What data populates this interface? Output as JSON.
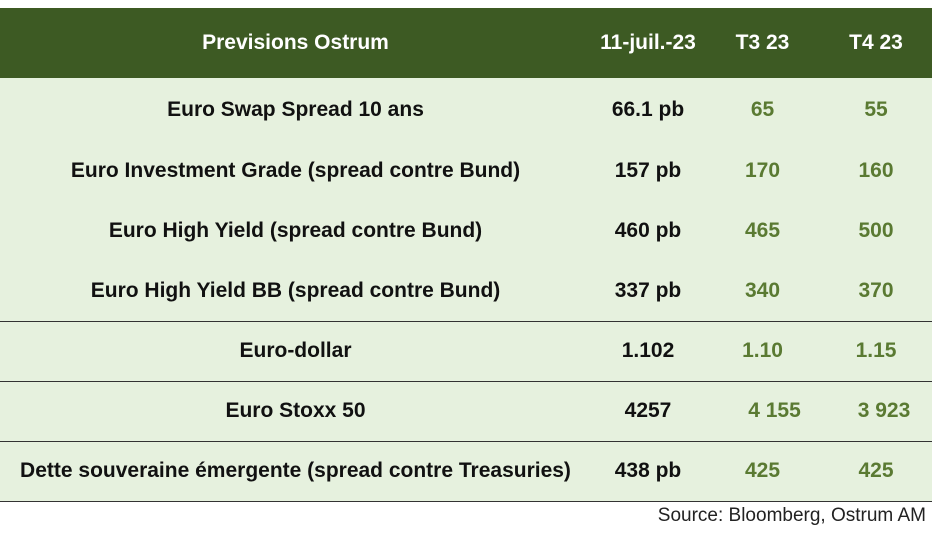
{
  "header": {
    "label": "Previsions Ostrum",
    "date": "11-juil.-23",
    "t3": "T3 23",
    "t4": "T4 23"
  },
  "rows": [
    {
      "label": "Euro Swap Spread 10 ans",
      "current": "66.1 pb",
      "t3": "65",
      "t4": "55"
    },
    {
      "label": "Euro Investment Grade (spread contre Bund)",
      "current": "157 pb",
      "t3": "170",
      "t4": "160"
    },
    {
      "label": "Euro High Yield (spread contre Bund)",
      "current": "460 pb",
      "t3": "465",
      "t4": "500"
    },
    {
      "label": "Euro High Yield BB (spread contre Bund)",
      "current": "337 pb",
      "t3": "340",
      "t4": "370"
    },
    {
      "label": "Euro-dollar",
      "current": "1.102",
      "t3": "1.10",
      "t4": "1.15"
    },
    {
      "label": "Euro Stoxx 50",
      "current": "4257",
      "t3": "4 155",
      "t4": "3 923"
    },
    {
      "label": "Dette souveraine émergente (spread contre Treasuries)",
      "current": "438 pb",
      "t3": "425",
      "t4": "425"
    }
  ],
  "source": "Source: Bloomberg, Ostrum AM",
  "colors": {
    "header_bg": "#3d5a23",
    "row_bg": "#e6f1de",
    "forecast_text": "#5a7a32"
  }
}
